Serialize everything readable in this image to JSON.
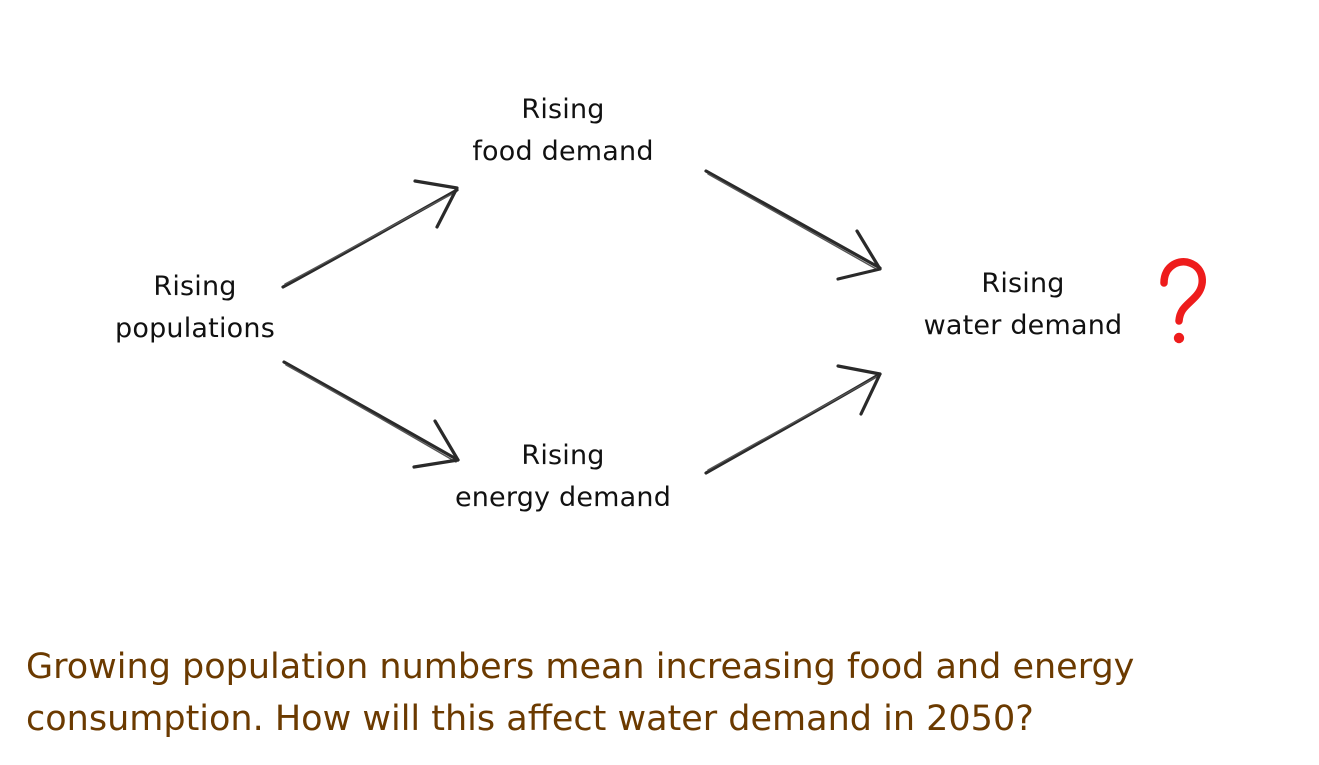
{
  "diagram": {
    "nodes": {
      "populations": {
        "line1": "Rising",
        "line2": "populations"
      },
      "food": {
        "line1": "Rising",
        "line2": "food demand"
      },
      "energy": {
        "line1": "Rising",
        "line2": "energy demand"
      },
      "water": {
        "line1": "Rising",
        "line2": "water demand"
      }
    },
    "question_mark": {
      "symbol": "?",
      "color": "#ee1c1c"
    },
    "edges": [
      {
        "from": "populations",
        "to": "food"
      },
      {
        "from": "populations",
        "to": "energy"
      },
      {
        "from": "food",
        "to": "water"
      },
      {
        "from": "energy",
        "to": "water"
      }
    ]
  },
  "caption": {
    "line1": "Growing population numbers mean increasing food and energy",
    "line2": "consumption. How will this affect water demand in 2050?",
    "color": "#6b3a00"
  }
}
